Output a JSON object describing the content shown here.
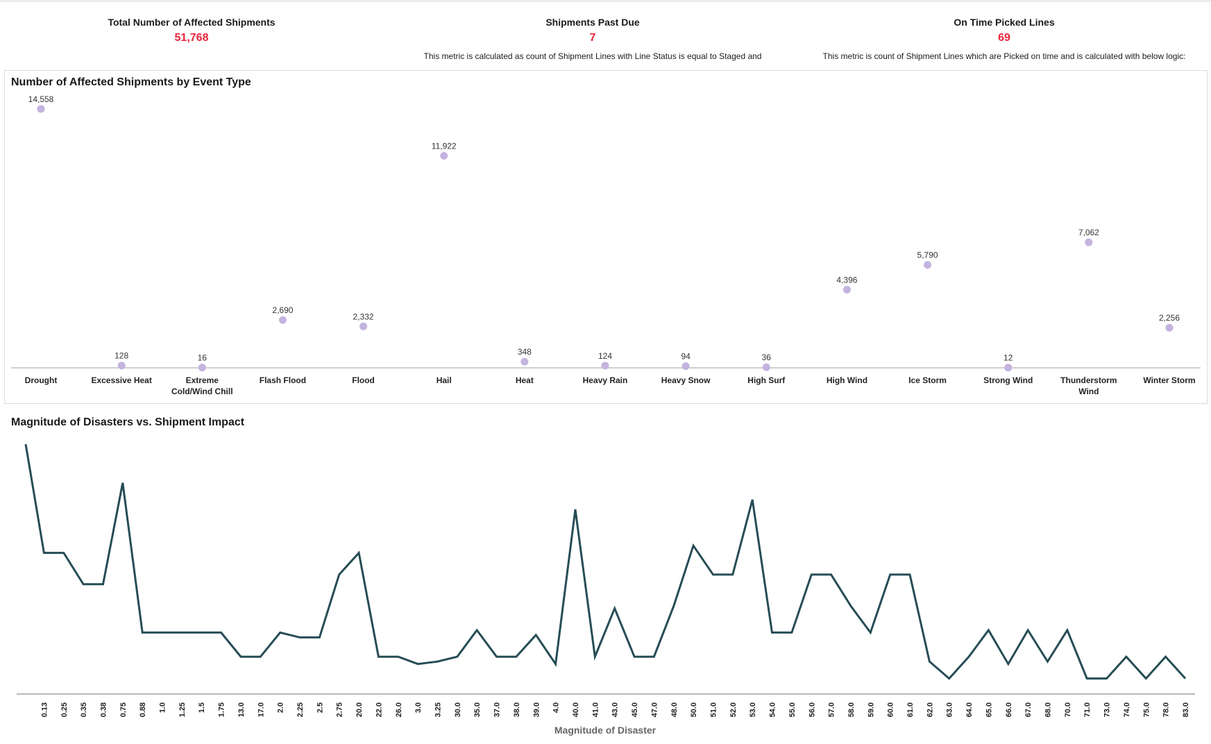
{
  "kpis": [
    {
      "title": "Total Number of Affected Shipments",
      "value": "51,768",
      "description": ""
    },
    {
      "title": "Shipments Past Due",
      "value": "7",
      "description": "This metric is calculated as count of Shipment Lines with Line Status is equal to Staged and"
    },
    {
      "title": "On Time Picked Lines",
      "value": "69",
      "description": "This metric is count of Shipment Lines which are Picked on time and is calculated with below logic:"
    }
  ],
  "colors": {
    "kpi_value": "#e8253a",
    "dot": "#c3b3de",
    "line": "#264d55",
    "axis": "#a0a0a0"
  },
  "chart_data": [
    {
      "type": "scatter",
      "title": "Number of Affected Shipments by Event Type",
      "categories": [
        "Drought",
        "Excessive Heat",
        "Extreme Cold/Wind Chill",
        "Flash Flood",
        "Flood",
        "Hail",
        "Heat",
        "Heavy Rain",
        "Heavy Snow",
        "High Surf",
        "High Wind",
        "Ice Storm",
        "Strong Wind",
        "Thunderstorm Wind",
        "Winter Storm"
      ],
      "values": [
        14558,
        128,
        16,
        2690,
        2332,
        11922,
        348,
        124,
        94,
        36,
        4396,
        5790,
        12,
        7062,
        2256
      ],
      "value_labels": [
        "14,558",
        "128",
        "16",
        "2,690",
        "2,332",
        "11,922",
        "348",
        "124",
        "94",
        "36",
        "4,396",
        "5,790",
        "12",
        "7,062",
        "2,256"
      ],
      "ylim": [
        0,
        14558
      ],
      "grid": false
    },
    {
      "type": "line",
      "title": "Magnitude of Disasters vs. Shipment Impact",
      "xlabel": "Magnitude of Disaster",
      "ylabel": "",
      "y_axis_shown": false,
      "y_units": "relative (no axis printed)",
      "categories": [
        "",
        "0.13",
        "0.25",
        "0.35",
        "0.38",
        "0.75",
        "0.88",
        "1.0",
        "1.25",
        "1.5",
        "1.75",
        "13.0",
        "17.0",
        "2.0",
        "2.25",
        "2.5",
        "2.75",
        "20.0",
        "22.0",
        "26.0",
        "3.0",
        "3.25",
        "30.0",
        "35.0",
        "37.0",
        "38.0",
        "39.0",
        "4.0",
        "40.0",
        "41.0",
        "43.0",
        "45.0",
        "47.0",
        "48.0",
        "50.0",
        "51.0",
        "52.0",
        "53.0",
        "54.0",
        "55.0",
        "56.0",
        "57.0",
        "58.0",
        "59.0",
        "60.0",
        "61.0",
        "62.0",
        "63.0",
        "64.0",
        "65.0",
        "66.0",
        "67.0",
        "68.0",
        "70.0",
        "71.0",
        "73.0",
        "74.0",
        "75.0",
        "78.0",
        "83.0"
      ],
      "values": [
        100,
        55,
        55,
        42,
        42,
        84,
        22,
        22,
        22,
        22,
        22,
        12,
        12,
        22,
        20,
        20,
        46,
        55,
        12,
        12,
        9,
        10,
        12,
        23,
        12,
        12,
        21,
        9,
        73,
        12,
        32,
        12,
        12,
        33,
        58,
        46,
        46,
        77,
        22,
        22,
        46,
        46,
        33,
        22,
        46,
        46,
        10,
        3,
        12,
        23,
        9,
        23,
        10,
        23,
        3,
        3,
        12,
        3,
        12,
        3
      ],
      "ylim": [
        0,
        100
      ],
      "grid": false
    }
  ]
}
